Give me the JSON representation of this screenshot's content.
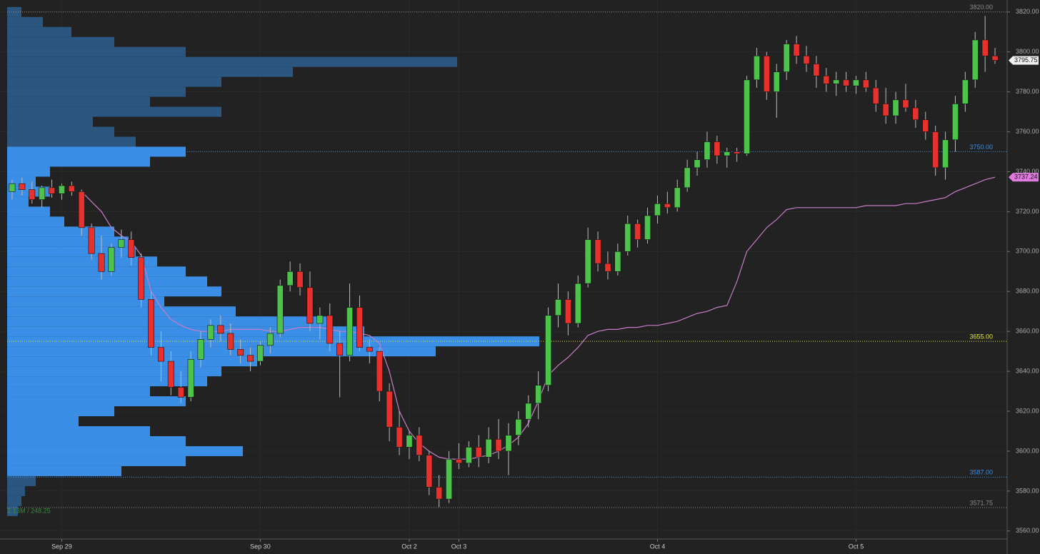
{
  "chart_data": {
    "type": "candlestick",
    "categories": [
      null,
      null,
      null,
      null,
      null,
      "Sep 29",
      null,
      null,
      null,
      null,
      null,
      null,
      null,
      null,
      null,
      null,
      null,
      null,
      null,
      null,
      null,
      null,
      null,
      null,
      null,
      "Sep 30",
      null,
      null,
      null,
      null,
      null,
      null,
      null,
      null,
      null,
      null,
      null,
      null,
      null,
      null,
      "Oct 2",
      null,
      null,
      null,
      null,
      "Oct 3",
      null,
      null,
      null,
      null,
      null,
      null,
      null,
      null,
      null,
      null,
      null,
      null,
      null,
      null,
      null,
      null,
      null,
      null,
      null,
      "Oct 4",
      null,
      null,
      null,
      null,
      null,
      null,
      null,
      null,
      null,
      null,
      null,
      null,
      null,
      null,
      null,
      null,
      null,
      null,
      null,
      "Oct 5",
      null,
      null,
      null,
      null,
      null,
      null,
      null,
      null,
      null,
      null,
      null,
      null,
      null,
      null
    ],
    "open": [
      3730,
      3734,
      3731,
      3726,
      3732,
      3729,
      3733,
      3730,
      3712,
      3699,
      3690,
      3702,
      3706,
      3697,
      3676,
      3652,
      3645,
      3632,
      3627,
      3646,
      3656,
      3663,
      3659,
      3651,
      3648,
      3645,
      3653,
      3659,
      3683,
      3690,
      3682,
      3664,
      3668,
      3654,
      3648,
      3672,
      3652,
      3650,
      3630,
      3612,
      3602,
      3608,
      3598,
      3582,
      3576,
      3596,
      3594,
      3602,
      3597,
      3606,
      3600,
      3608,
      3616,
      3624,
      3633,
      3668,
      3676,
      3664,
      3684,
      3706,
      3694,
      3690,
      3700,
      3714,
      3706,
      3718,
      3724,
      3722,
      3732,
      3742,
      3746,
      3755,
      3748,
      3750,
      3749,
      3786,
      3798,
      3780,
      3790,
      3804,
      3798,
      3794,
      3788,
      3784,
      3786,
      3783,
      3786,
      3782,
      3774,
      3768,
      3776,
      3772,
      3766,
      3760,
      3742,
      3756,
      3774,
      3786,
      3806,
      3798
    ],
    "high": [
      3736,
      3737,
      3735,
      3733,
      3736,
      3734,
      3735,
      3731,
      3714,
      3708,
      3704,
      3711,
      3710,
      3699,
      3680,
      3660,
      3650,
      3640,
      3650,
      3660,
      3666,
      3668,
      3664,
      3656,
      3652,
      3655,
      3662,
      3686,
      3695,
      3694,
      3690,
      3672,
      3674,
      3660,
      3684,
      3678,
      3656,
      3652,
      3634,
      3620,
      3610,
      3612,
      3600,
      3588,
      3600,
      3604,
      3605,
      3608,
      3612,
      3616,
      3614,
      3620,
      3628,
      3640,
      3672,
      3684,
      3680,
      3688,
      3712,
      3710,
      3700,
      3704,
      3718,
      3716,
      3722,
      3728,
      3730,
      3736,
      3746,
      3750,
      3760,
      3758,
      3752,
      3752,
      3788,
      3802,
      3800,
      3794,
      3806,
      3808,
      3803,
      3798,
      3792,
      3790,
      3790,
      3788,
      3790,
      3786,
      3782,
      3780,
      3784,
      3776,
      3770,
      3763,
      3760,
      3778,
      3790,
      3810,
      3818,
      3802
    ],
    "low": [
      3726,
      3728,
      3724,
      3722,
      3727,
      3726,
      3728,
      3708,
      3696,
      3686,
      3688,
      3697,
      3693,
      3672,
      3648,
      3635,
      3628,
      3624,
      3625,
      3642,
      3652,
      3655,
      3648,
      3644,
      3640,
      3643,
      3649,
      3657,
      3680,
      3678,
      3660,
      3656,
      3650,
      3627,
      3645,
      3650,
      3644,
      3625,
      3605,
      3598,
      3596,
      3595,
      3578,
      3572,
      3574,
      3591,
      3592,
      3592,
      3594,
      3596,
      3588,
      3603,
      3612,
      3616,
      3630,
      3662,
      3658,
      3662,
      3682,
      3690,
      3686,
      3688,
      3698,
      3702,
      3704,
      3714,
      3719,
      3720,
      3730,
      3738,
      3742,
      3744,
      3742,
      3745,
      3748,
      3782,
      3776,
      3767,
      3786,
      3794,
      3790,
      3782,
      3780,
      3778,
      3780,
      3779,
      3780,
      3770,
      3764,
      3764,
      3770,
      3762,
      3756,
      3738,
      3736,
      3750,
      3770,
      3782,
      3790,
      3794
    ],
    "close": [
      3734,
      3731,
      3726,
      3732,
      3729,
      3733,
      3730,
      3712,
      3699,
      3690,
      3702,
      3706,
      3697,
      3676,
      3652,
      3645,
      3632,
      3627,
      3646,
      3656,
      3663,
      3659,
      3651,
      3648,
      3645,
      3653,
      3659,
      3683,
      3690,
      3682,
      3664,
      3668,
      3654,
      3648,
      3672,
      3652,
      3650,
      3630,
      3612,
      3602,
      3608,
      3598,
      3582,
      3576,
      3596,
      3594,
      3602,
      3597,
      3606,
      3600,
      3608,
      3616,
      3624,
      3633,
      3668,
      3676,
      3664,
      3684,
      3706,
      3694,
      3690,
      3700,
      3714,
      3706,
      3718,
      3724,
      3722,
      3732,
      3742,
      3746,
      3755,
      3748,
      3750,
      3749,
      3786,
      3798,
      3780,
      3790,
      3804,
      3798,
      3794,
      3788,
      3784,
      3786,
      3783,
      3786,
      3782,
      3774,
      3768,
      3776,
      3772,
      3766,
      3760,
      3742,
      3756,
      3774,
      3786,
      3806,
      3798,
      3795.75
    ],
    "up_color": "#4cc44c",
    "down_color": "#e8302c",
    "close_label": "3795.75",
    "vwap": {
      "color": "#c77dc7",
      "label": "3737.24",
      "values": [
        null,
        null,
        null,
        null,
        null,
        null,
        null,
        3730,
        3725,
        3720,
        3712,
        3708,
        3705,
        3698,
        3680,
        3672,
        3666,
        3663,
        3661,
        3660,
        3660,
        3660,
        3661,
        3661,
        3661,
        3661,
        3660,
        3660,
        3661,
        3662,
        3662,
        3662,
        3661,
        3660,
        3660,
        3659,
        3658,
        3654,
        3640,
        3620,
        3610,
        3604,
        3600,
        3597,
        3596,
        3596,
        3596,
        3597,
        3598,
        3600,
        3603,
        3607,
        3614,
        3625,
        3638,
        3643,
        3647,
        3652,
        3658,
        3660,
        3661,
        3661,
        3662,
        3662,
        3663,
        3663,
        3664,
        3665,
        3667,
        3669,
        3670,
        3672,
        3673,
        3685,
        3700,
        3706,
        3712,
        3716,
        3721,
        3722,
        3722,
        3722,
        3722,
        3722,
        3722,
        3722,
        3723,
        3723,
        3723,
        3723,
        3724,
        3724,
        3725,
        3726,
        3727,
        3730,
        3732,
        3734,
        3736,
        3737.24
      ]
    },
    "ylim": [
      3556,
      3826
    ],
    "yticks": [
      {
        "value": 3560,
        "label": "3560.00"
      },
      {
        "value": 3580,
        "label": "3580.00"
      },
      {
        "value": 3600,
        "label": "3600.00"
      },
      {
        "value": 3620,
        "label": "3620.00"
      },
      {
        "value": 3640,
        "label": "3640.00"
      },
      {
        "value": 3660,
        "label": "3660.00"
      },
      {
        "value": 3680,
        "label": "3680.00"
      },
      {
        "value": 3700,
        "label": "3700.00"
      },
      {
        "value": 3720,
        "label": "3720.00"
      },
      {
        "value": 3740,
        "label": "3740.00"
      },
      {
        "value": 3760,
        "label": "3760.00"
      },
      {
        "value": 3780,
        "label": "3780.00"
      },
      {
        "value": 3800,
        "label": "3800.00"
      },
      {
        "value": 3820,
        "label": "3820.00"
      }
    ],
    "markers": [
      {
        "value": 3820,
        "label": "3820.00",
        "color": "#8a8a8a"
      },
      {
        "value": 3750,
        "label": "3750.00",
        "color": "#3a8ee6"
      },
      {
        "value": 3655,
        "label": "3655.00",
        "color": "#e6e632"
      },
      {
        "value": 3587,
        "label": "3587.00",
        "color": "#3a8ee6"
      },
      {
        "value": 3571.75,
        "label": "3571.75",
        "color": "#8a8a8a"
      }
    ],
    "profile": {
      "label": "Σ 13M / 248.25",
      "color": "#2a5680",
      "value_area_color": "#3a8ee6",
      "xlim": [
        0,
        1000
      ],
      "levels": [
        3820,
        3815,
        3810,
        3805,
        3800,
        3795,
        3790,
        3785,
        3780,
        3775,
        3770,
        3765,
        3760,
        3755,
        3750,
        3745,
        3740,
        3735,
        3730,
        3725,
        3720,
        3715,
        3710,
        3705,
        3700,
        3695,
        3690,
        3685,
        3680,
        3675,
        3670,
        3665,
        3660,
        3655,
        3650,
        3645,
        3640,
        3635,
        3630,
        3625,
        3620,
        3615,
        3610,
        3605,
        3600,
        3595,
        3590,
        3585,
        3580,
        3575,
        3570
      ],
      "volumes": [
        20,
        50,
        90,
        150,
        250,
        630,
        400,
        300,
        250,
        200,
        300,
        120,
        150,
        180,
        250,
        200,
        60,
        40,
        60,
        30,
        60,
        80,
        150,
        170,
        180,
        210,
        250,
        280,
        300,
        220,
        320,
        450,
        500,
        745,
        600,
        350,
        300,
        280,
        200,
        250,
        150,
        100,
        200,
        250,
        330,
        250,
        160,
        40,
        25,
        20,
        15
      ]
    }
  }
}
